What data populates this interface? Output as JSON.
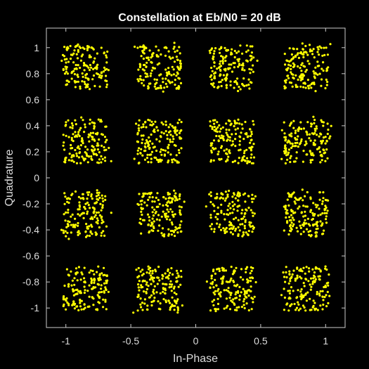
{
  "chart_data": {
    "type": "scatter",
    "title": "Constellation at Eb/N0 = 20 dB",
    "xlabel": "In-Phase",
    "ylabel": "Quadrature",
    "xlim": [
      -1.15,
      1.15
    ],
    "ylim": [
      -1.15,
      1.15
    ],
    "xticks": [
      -1,
      -0.5,
      0,
      0.5,
      1
    ],
    "xtick_labels": [
      "-1",
      "-0.5",
      "0",
      "0.5",
      "1"
    ],
    "yticks": [
      1,
      0.8,
      0.6,
      0.4,
      0.2,
      0,
      -0.2,
      -0.4,
      -0.6,
      -0.8,
      -1
    ],
    "ytick_labels": [
      "1",
      "0.8",
      "0.6",
      "0.4",
      "0.2",
      "0",
      "-0.2",
      "-0.4",
      "-0.6",
      "-0.8",
      "-1"
    ],
    "grid": false,
    "background_color": "#000000",
    "axes_color": "#cccccc",
    "marker_color": "#ffff00",
    "constellation_i": [
      -0.85,
      -0.28,
      0.28,
      0.85
    ],
    "constellation_q": [
      -0.85,
      -0.28,
      0.28,
      0.85
    ],
    "cluster_half_width": 0.17,
    "points_per_cluster": 150
  }
}
